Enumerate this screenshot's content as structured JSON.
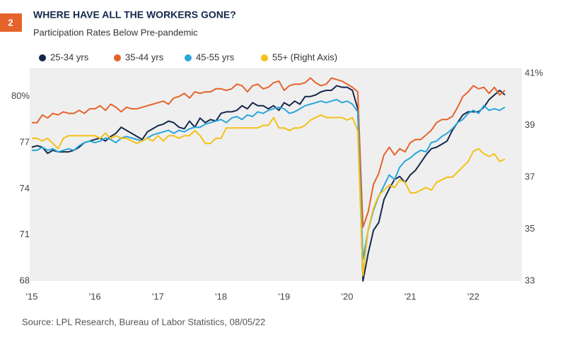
{
  "badge": "2",
  "chart_data": {
    "type": "line",
    "title": "WHERE HAVE ALL THE WORKERS GONE?",
    "subtitle": "Participation Rates Below Pre-pandemic",
    "source": "Source:  LPL Research, Bureau of Labor Statistics,  08/05/22",
    "categories": [
      "'15",
      null,
      null,
      null,
      null,
      null,
      null,
      null,
      null,
      null,
      null,
      null,
      "'16",
      null,
      null,
      null,
      null,
      null,
      null,
      null,
      null,
      null,
      null,
      null,
      "'17",
      null,
      null,
      null,
      null,
      null,
      null,
      null,
      null,
      null,
      null,
      null,
      "'18",
      null,
      null,
      null,
      null,
      null,
      null,
      null,
      null,
      null,
      null,
      null,
      "'19",
      null,
      null,
      null,
      null,
      null,
      null,
      null,
      null,
      null,
      null,
      null,
      "'20",
      null,
      null,
      null,
      null,
      null,
      null,
      null,
      null,
      null,
      null,
      null,
      "'21",
      null,
      null,
      null,
      null,
      null,
      null,
      null,
      null,
      null,
      null,
      null,
      "'22",
      null,
      null,
      null,
      null,
      null,
      null
    ],
    "ylim": [
      68,
      81.5
    ],
    "yticks": [
      68,
      71,
      74,
      77,
      {
        "value": 80,
        "label": "80%"
      }
    ],
    "y2lim": [
      33,
      41
    ],
    "y2ticks": [
      33,
      35,
      37,
      39,
      {
        "value": 41,
        "label": "41%"
      }
    ],
    "series": [
      {
        "name": "25-34 yrs",
        "color": "#14284b",
        "values": [
          76.7,
          76.8,
          76.7,
          76.3,
          76.5,
          76.4,
          76.4,
          76.4,
          76.5,
          76.7,
          77.0,
          77.1,
          77.2,
          77.3,
          77.1,
          77.4,
          77.6,
          78.0,
          77.8,
          77.6,
          77.4,
          77.2,
          77.7,
          77.9,
          78.1,
          78.2,
          78.4,
          78.3,
          78.0,
          77.9,
          78.4,
          78.0,
          78.6,
          78.3,
          78.5,
          78.4,
          78.9,
          79.0,
          79.0,
          79.1,
          79.4,
          79.2,
          79.6,
          79.4,
          79.4,
          79.2,
          79.4,
          79.1,
          79.6,
          79.4,
          79.7,
          79.5,
          80.0,
          80.0,
          80.1,
          80.3,
          80.4,
          80.4,
          80.7,
          80.6,
          80.6,
          80.4,
          79.2,
          68.0,
          69.8,
          71.3,
          71.8,
          73.3,
          74.0,
          74.6,
          74.8,
          74.4,
          74.9,
          75.2,
          75.7,
          76.2,
          76.6,
          76.7,
          76.9,
          77.1,
          77.8,
          78.3,
          78.8,
          79.0,
          79.0,
          79.0,
          79.3,
          79.8,
          80.1,
          80.4,
          80.1
        ]
      },
      {
        "name": "35-44 yrs",
        "color": "#e5632b",
        "values": [
          78.3,
          78.3,
          78.8,
          78.6,
          78.9,
          78.8,
          79.0,
          78.9,
          78.9,
          79.1,
          78.9,
          79.2,
          79.2,
          79.4,
          79.1,
          79.5,
          79.3,
          79.0,
          79.3,
          79.2,
          79.2,
          79.3,
          79.4,
          79.5,
          79.6,
          79.7,
          79.5,
          79.9,
          80.0,
          80.2,
          79.9,
          80.3,
          80.2,
          80.3,
          80.3,
          80.5,
          80.5,
          80.4,
          80.5,
          80.8,
          80.7,
          80.3,
          80.7,
          80.8,
          80.5,
          80.6,
          80.9,
          81.0,
          80.4,
          80.7,
          80.8,
          80.8,
          80.9,
          81.2,
          80.9,
          80.7,
          80.8,
          81.2,
          81.1,
          81.0,
          80.8,
          80.6,
          80.3,
          71.5,
          72.5,
          74.3,
          75.0,
          76.2,
          76.7,
          76.2,
          76.6,
          76.4,
          77.0,
          77.2,
          77.2,
          77.5,
          77.8,
          78.3,
          78.5,
          78.5,
          78.7,
          79.3,
          80.0,
          80.3,
          80.7,
          80.5,
          80.6,
          80.2,
          80.6,
          80.1,
          80.4
        ]
      },
      {
        "name": "45-55 yrs",
        "color": "#2aa6dc",
        "values": [
          76.5,
          76.5,
          76.7,
          76.5,
          76.6,
          76.4,
          76.5,
          76.6,
          76.5,
          76.8,
          77.0,
          77.1,
          77.0,
          77.1,
          77.3,
          77.2,
          77.0,
          77.3,
          77.4,
          77.3,
          77.2,
          77.1,
          77.3,
          77.5,
          77.6,
          77.7,
          77.8,
          77.6,
          77.8,
          77.7,
          77.9,
          78.0,
          78.0,
          78.2,
          78.3,
          78.4,
          78.5,
          78.3,
          78.6,
          78.7,
          78.5,
          78.8,
          78.7,
          79.0,
          78.9,
          79.1,
          79.2,
          79.3,
          79.2,
          78.9,
          79.0,
          79.2,
          79.4,
          79.5,
          79.6,
          79.7,
          79.6,
          79.7,
          79.8,
          79.6,
          79.7,
          79.5,
          79.0,
          69.4,
          71.3,
          72.6,
          73.5,
          74.2,
          74.9,
          74.6,
          75.4,
          75.8,
          76.0,
          76.3,
          76.5,
          76.4,
          77.0,
          77.1,
          77.4,
          77.6,
          77.9,
          78.3,
          78.5,
          78.9,
          79.1,
          78.9,
          79.4,
          79.1,
          79.2,
          79.1,
          79.3
        ]
      },
      {
        "name": "55+ (Right Axis)",
        "color": "#f5c116",
        "axis": "y2",
        "values": [
          38.5,
          38.5,
          38.4,
          38.5,
          38.3,
          38.1,
          38.5,
          38.6,
          38.6,
          38.6,
          38.6,
          38.6,
          38.6,
          38.5,
          38.7,
          38.5,
          38.6,
          38.5,
          38.5,
          38.4,
          38.3,
          38.4,
          38.5,
          38.4,
          38.6,
          38.4,
          38.6,
          38.6,
          38.5,
          38.6,
          38.6,
          38.8,
          38.6,
          38.3,
          38.3,
          38.5,
          38.5,
          38.9,
          38.9,
          38.9,
          38.9,
          38.9,
          38.9,
          38.9,
          39.0,
          39.0,
          39.3,
          38.9,
          38.9,
          38.8,
          38.9,
          38.9,
          39.0,
          39.2,
          39.3,
          39.4,
          39.3,
          39.3,
          39.3,
          39.3,
          39.2,
          39.3,
          38.8,
          33.2,
          35.0,
          35.8,
          36.3,
          36.5,
          36.7,
          36.6,
          36.9,
          36.8,
          36.4,
          36.4,
          36.5,
          36.6,
          36.5,
          36.8,
          36.9,
          37.0,
          37.0,
          37.2,
          37.4,
          37.6,
          38.0,
          38.1,
          37.9,
          37.8,
          37.9,
          37.6,
          37.7
        ]
      }
    ]
  }
}
